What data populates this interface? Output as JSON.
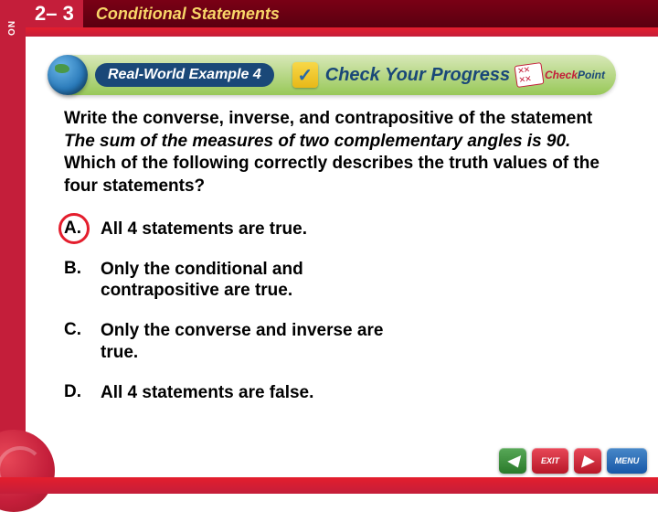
{
  "header": {
    "lesson_tab": "LESSON",
    "lesson_number": "2– 3",
    "lesson_title": "Conditional Statements"
  },
  "example_bar": {
    "example_label": "Real-World Example 4",
    "check_glyph": "✓",
    "cyp_label": "Check Your Progress",
    "checkpoint_check": "Check",
    "checkpoint_point": "Point"
  },
  "question": {
    "prompt_before": "Write the converse, inverse, and contrapositive of the statement ",
    "prompt_italic": "The sum of the measures of two complementary angles is 90.",
    "prompt_after": " Which of the following correctly describes the truth values of the four statements?"
  },
  "choices": [
    {
      "letter": "A.",
      "text": "All 4 statements are true.",
      "selected": true
    },
    {
      "letter": "B.",
      "text": "Only the conditional and contrapositive are true.",
      "selected": false
    },
    {
      "letter": "C.",
      "text": "Only the converse and inverse are true.",
      "selected": false
    },
    {
      "letter": "D.",
      "text": "All 4 statements are false.",
      "selected": false
    }
  ],
  "nav": {
    "back": "◀",
    "exit": "EXIT",
    "forward": "▶",
    "menu": "MENU"
  },
  "colors": {
    "red_primary": "#c41e3a",
    "red_bright": "#e41e2d",
    "dark_red": "#5a0010",
    "yellow_title": "#f8d568",
    "green_light": "#d8e8b8",
    "green_dark": "#98c858",
    "navy": "#1a4878",
    "blue_globe": "#2878b8",
    "text": "#000000",
    "background": "#ffffff"
  }
}
